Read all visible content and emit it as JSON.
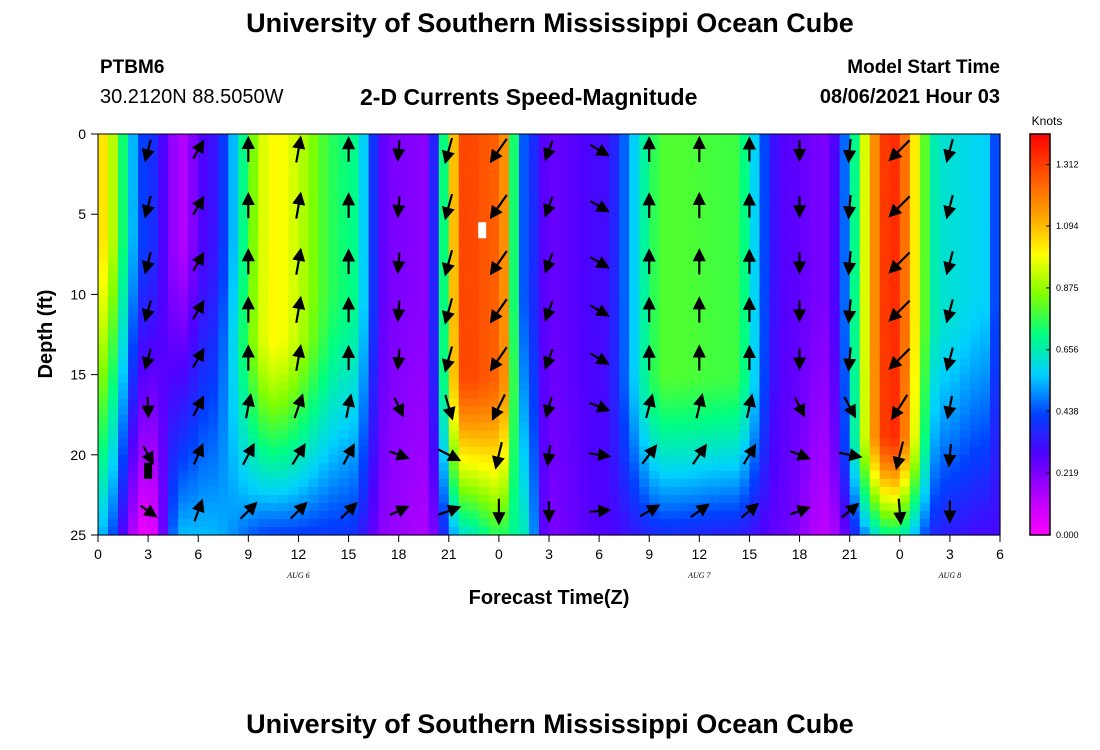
{
  "header": {
    "title": "University of Southern Mississippi Ocean Cube",
    "station_id": "PTBM6",
    "station_location": "30.2120N  88.5050W",
    "subtitle": "2-D Currents Speed-Magnitude",
    "model_start_label": "Model Start Time",
    "model_start_value": "08/06/2021 Hour 03"
  },
  "footer": {
    "title": "University of Southern Mississippi Ocean Cube"
  },
  "chart_data": {
    "type": "heatmap",
    "title": "2-D Currents Speed-Magnitude",
    "xlabel": "Forecast Time(Z)",
    "ylabel": "Depth (ft)",
    "x_range_hours": [
      0,
      54
    ],
    "y_range_ft": [
      0,
      25
    ],
    "x_ticks": [
      {
        "hour": 0,
        "label": "0"
      },
      {
        "hour": 3,
        "label": "3"
      },
      {
        "hour": 6,
        "label": "6"
      },
      {
        "hour": 9,
        "label": "9"
      },
      {
        "hour": 12,
        "label": "12"
      },
      {
        "hour": 15,
        "label": "15"
      },
      {
        "hour": 18,
        "label": "18"
      },
      {
        "hour": 21,
        "label": "21"
      },
      {
        "hour": 24,
        "label": "0"
      },
      {
        "hour": 27,
        "label": "3"
      },
      {
        "hour": 30,
        "label": "6"
      },
      {
        "hour": 33,
        "label": "9"
      },
      {
        "hour": 36,
        "label": "12"
      },
      {
        "hour": 39,
        "label": "15"
      },
      {
        "hour": 42,
        "label": "18"
      },
      {
        "hour": 45,
        "label": "21"
      },
      {
        "hour": 48,
        "label": "0"
      },
      {
        "hour": 51,
        "label": "3"
      },
      {
        "hour": 54,
        "label": "6"
      }
    ],
    "y_ticks": [
      {
        "depth": 0,
        "label": "0"
      },
      {
        "depth": 5,
        "label": "5"
      },
      {
        "depth": 10,
        "label": "10"
      },
      {
        "depth": 15,
        "label": "15"
      },
      {
        "depth": 20,
        "label": "20"
      },
      {
        "depth": 25,
        "label": "25"
      }
    ],
    "date_labels": [
      {
        "hour": 12,
        "label": "AUG 6"
      },
      {
        "hour": 36,
        "label": "AUG 7"
      },
      {
        "hour": 51,
        "label": "AUG 8"
      }
    ],
    "colorbar": {
      "title": "Knots",
      "min": 0.0,
      "max": 1.42,
      "ticks": [
        "0.000",
        "0.219",
        "0.438",
        "0.656",
        "0.875",
        "1.094",
        "1.312"
      ],
      "colors": [
        "#ff00ff",
        "#b000ff",
        "#5000ff",
        "#0040ff",
        "#00d0ff",
        "#00ff80",
        "#80ff00",
        "#ffff00",
        "#ffa000",
        "#ff5000",
        "#ff0000"
      ]
    },
    "speed_columns": [
      {
        "hour": 0,
        "top": 1.05,
        "bot": 0.55,
        "decay": 0.25
      },
      {
        "hour": 3,
        "top": 0.4,
        "bot": 0.02,
        "decay": 0.25
      },
      {
        "hour": 5,
        "top": 0.14,
        "bot": 0.55,
        "decay": 0.25
      },
      {
        "hour": 6.5,
        "top": 0.3,
        "bot": 0.55,
        "decay": 0.25
      },
      {
        "hour": 10.5,
        "top": 1.0,
        "bot": 0.42,
        "decay": 0.5
      },
      {
        "hour": 15,
        "top": 0.72,
        "bot": 0.4,
        "decay": 0.4
      },
      {
        "hour": 17.5,
        "top": 0.22,
        "bot": 0.18,
        "decay": 0.4
      },
      {
        "hour": 19.5,
        "top": 0.2,
        "bot": 0.15,
        "decay": 0.4
      },
      {
        "hour": 22,
        "top": 1.3,
        "bot": 0.62,
        "decay": 0.6
      },
      {
        "hour": 24,
        "top": 1.25,
        "bot": 0.75,
        "decay": 0.6
      },
      {
        "hour": 25.5,
        "top": 0.45,
        "bot": 0.65,
        "decay": 0.4
      },
      {
        "hour": 27,
        "top": 0.25,
        "bot": 0.22,
        "decay": 0.4
      },
      {
        "hour": 30,
        "top": 0.3,
        "bot": 0.28,
        "decay": 0.4
      },
      {
        "hour": 34,
        "top": 0.8,
        "bot": 0.38,
        "decay": 0.6
      },
      {
        "hour": 38,
        "top": 0.78,
        "bot": 0.35,
        "decay": 0.6
      },
      {
        "hour": 41,
        "top": 0.28,
        "bot": 0.25,
        "decay": 0.4
      },
      {
        "hour": 43.5,
        "top": 0.22,
        "bot": 0.12,
        "decay": 0.4
      },
      {
        "hour": 47.5,
        "top": 1.35,
        "bot": 0.7,
        "decay": 0.75
      },
      {
        "hour": 50.5,
        "top": 0.62,
        "bot": 0.35,
        "decay": 0.45
      },
      {
        "hour": 53,
        "top": 0.58,
        "bot": 0.3,
        "decay": 0.4
      },
      {
        "hour": 54,
        "top": 0.4,
        "bot": 0.3,
        "decay": 0.4
      }
    ],
    "arrow_directions": [
      {
        "hour": 3,
        "deg": 195
      },
      {
        "hour": 6,
        "deg": 30
      },
      {
        "hour": 9,
        "deg": 0
      },
      {
        "hour": 12,
        "deg": 10
      },
      {
        "hour": 15,
        "deg": 0
      },
      {
        "hour": 18,
        "deg": 185
      },
      {
        "hour": 21,
        "deg": 195
      },
      {
        "hour": 24,
        "deg": 215
      },
      {
        "hour": 27,
        "deg": 200
      },
      {
        "hour": 30,
        "deg": 120
      },
      {
        "hour": 33,
        "deg": 0
      },
      {
        "hour": 36,
        "deg": 0
      },
      {
        "hour": 39,
        "deg": 0
      },
      {
        "hour": 42,
        "deg": 180
      },
      {
        "hour": 45,
        "deg": 185
      },
      {
        "hour": 48,
        "deg": 225
      },
      {
        "hour": 51,
        "deg": 195
      }
    ],
    "deep_arrow_directions": [
      {
        "hour": 3,
        "deg": 125
      },
      {
        "hour": 6,
        "deg": 20
      },
      {
        "hour": 9,
        "deg": 45
      },
      {
        "hour": 12,
        "deg": 45
      },
      {
        "hour": 15,
        "deg": 45
      },
      {
        "hour": 18,
        "deg": 65
      },
      {
        "hour": 21,
        "deg": 70
      },
      {
        "hour": 24,
        "deg": 180
      },
      {
        "hour": 27,
        "deg": 180
      },
      {
        "hour": 30,
        "deg": 85
      },
      {
        "hour": 33,
        "deg": 60
      },
      {
        "hour": 36,
        "deg": 55
      },
      {
        "hour": 39,
        "deg": 50
      },
      {
        "hour": 42,
        "deg": 70
      },
      {
        "hour": 45,
        "deg": 50
      },
      {
        "hour": 48,
        "deg": 175
      },
      {
        "hour": 51,
        "deg": 180
      }
    ],
    "arrow_depths": [
      1,
      4.5,
      8,
      11,
      14,
      17,
      20,
      23.5
    ],
    "markers": [
      {
        "hour": 3,
        "depth": 21,
        "color": "#000000"
      },
      {
        "hour": 23,
        "depth": 6,
        "color": "#ffffff"
      }
    ]
  }
}
